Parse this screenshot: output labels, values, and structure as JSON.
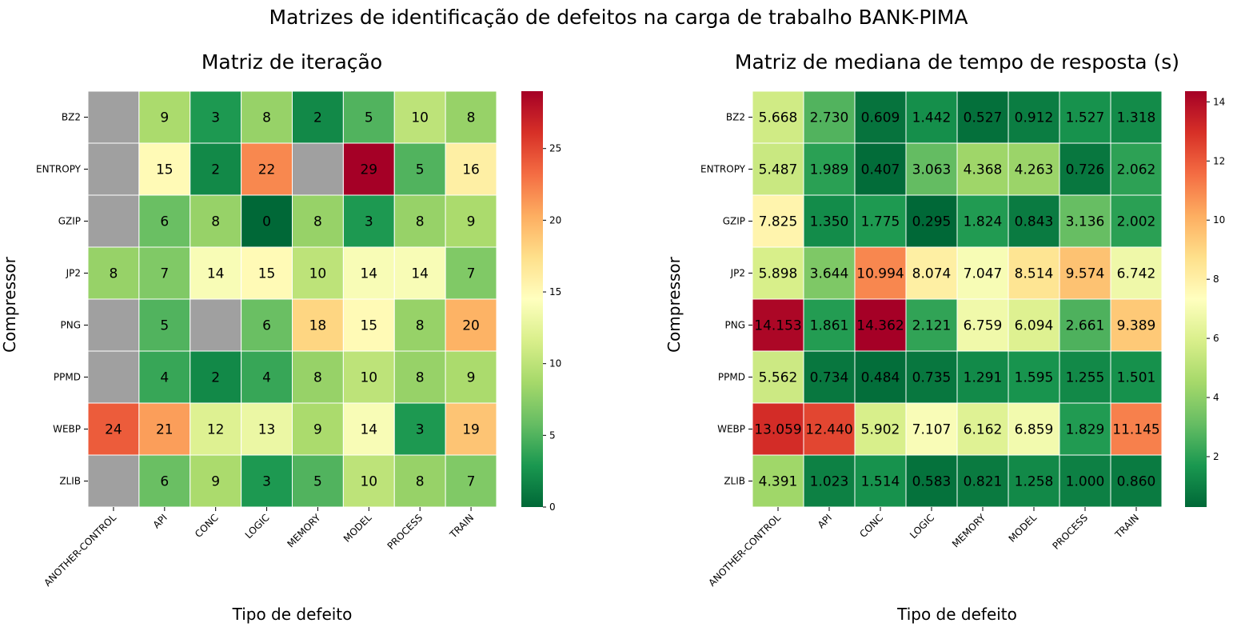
{
  "suptitle": "Matrizes de identificação de defeitos na carga de trabalho BANK-PIMA",
  "chart_data": [
    {
      "type": "heatmap",
      "title": "Matriz de iteração",
      "xlabel": "Tipo de defeito",
      "ylabel": "Compressor",
      "x_categories": [
        "ANOTHER-CONTROL",
        "API",
        "CONC",
        "LOGIC",
        "MEMORY",
        "MODEL",
        "PROCESS",
        "TRAIN"
      ],
      "y_categories": [
        "BZ2",
        "ENTROPY",
        "GZIP",
        "JP2",
        "PNG",
        "PPMD",
        "WEBP",
        "ZLIB"
      ],
      "values": [
        [
          null,
          9,
          3,
          8,
          2,
          5,
          10,
          8
        ],
        [
          null,
          15,
          2,
          22,
          null,
          29,
          5,
          16
        ],
        [
          null,
          6,
          8,
          0,
          8,
          3,
          8,
          9
        ],
        [
          8,
          7,
          14,
          15,
          10,
          14,
          14,
          7
        ],
        [
          null,
          5,
          null,
          6,
          18,
          15,
          8,
          20
        ],
        [
          null,
          4,
          2,
          4,
          8,
          10,
          8,
          9
        ],
        [
          24,
          21,
          12,
          13,
          9,
          14,
          3,
          19
        ],
        [
          null,
          6,
          9,
          3,
          5,
          10,
          8,
          7
        ]
      ],
      "value_labels": [
        [
          "",
          "9",
          "3",
          "8",
          "2",
          "5",
          "10",
          "8"
        ],
        [
          "",
          "15",
          "2",
          "22",
          "",
          "29",
          "5",
          "16"
        ],
        [
          "",
          "6",
          "8",
          "0",
          "8",
          "3",
          "8",
          "9"
        ],
        [
          "8",
          "7",
          "14",
          "15",
          "10",
          "14",
          "14",
          "7"
        ],
        [
          "",
          "5",
          "",
          "6",
          "18",
          "15",
          "8",
          "20"
        ],
        [
          "",
          "4",
          "2",
          "4",
          "8",
          "10",
          "8",
          "9"
        ],
        [
          "24",
          "21",
          "12",
          "13",
          "9",
          "14",
          "3",
          "19"
        ],
        [
          "",
          "6",
          "9",
          "3",
          "5",
          "10",
          "8",
          "7"
        ]
      ],
      "colormap": "RdYlGn_r",
      "missing_color": "#a0a0a0",
      "vmin": 0,
      "vmax": 29,
      "colorbar_ticks": [
        0,
        5,
        10,
        15,
        20,
        25
      ],
      "colorbar_tick_labels": [
        "0",
        "5",
        "10",
        "15",
        "20",
        "25"
      ]
    },
    {
      "type": "heatmap",
      "title": "Matriz de mediana de tempo de resposta (s)",
      "xlabel": "Tipo de defeito",
      "ylabel": "Compressor",
      "x_categories": [
        "ANOTHER-CONTROL",
        "API",
        "CONC",
        "LOGIC",
        "MEMORY",
        "MODEL",
        "PROCESS",
        "TRAIN"
      ],
      "y_categories": [
        "BZ2",
        "ENTROPY",
        "GZIP",
        "JP2",
        "PNG",
        "PPMD",
        "WEBP",
        "ZLIB"
      ],
      "values": [
        [
          5.668,
          2.73,
          0.609,
          1.442,
          0.527,
          0.912,
          1.527,
          1.318
        ],
        [
          5.487,
          1.989,
          0.407,
          3.063,
          4.368,
          4.263,
          0.726,
          2.062
        ],
        [
          7.825,
          1.35,
          1.775,
          0.295,
          1.824,
          0.843,
          3.136,
          2.002
        ],
        [
          5.898,
          3.644,
          10.994,
          8.074,
          7.047,
          8.514,
          9.574,
          6.742
        ],
        [
          14.153,
          1.861,
          14.362,
          2.121,
          6.759,
          6.094,
          2.661,
          9.389
        ],
        [
          5.562,
          0.734,
          0.484,
          0.735,
          1.291,
          1.595,
          1.255,
          1.501
        ],
        [
          13.059,
          12.44,
          5.902,
          7.107,
          6.162,
          6.859,
          1.829,
          11.145
        ],
        [
          4.391,
          1.023,
          1.514,
          0.583,
          0.821,
          1.258,
          1.0,
          0.86
        ]
      ],
      "value_labels": [
        [
          "5.668",
          "2.730",
          "0.609",
          "1.442",
          "0.527",
          "0.912",
          "1.527",
          "1.318"
        ],
        [
          "5.487",
          "1.989",
          "0.407",
          "3.063",
          "4.368",
          "4.263",
          "0.726",
          "2.062"
        ],
        [
          "7.825",
          "1.350",
          "1.775",
          "0.295",
          "1.824",
          "0.843",
          "3.136",
          "2.002"
        ],
        [
          "5.898",
          "3.644",
          "10.994",
          "8.074",
          "7.047",
          "8.514",
          "9.574",
          "6.742"
        ],
        [
          "14.153",
          "1.861",
          "14.362",
          "2.121",
          "6.759",
          "6.094",
          "2.661",
          "9.389"
        ],
        [
          "5.562",
          "0.734",
          "0.484",
          "0.735",
          "1.291",
          "1.595",
          "1.255",
          "1.501"
        ],
        [
          "13.059",
          "12.440",
          "5.902",
          "7.107",
          "6.162",
          "6.859",
          "1.829",
          "11.145"
        ],
        [
          "4.391",
          "1.023",
          "1.514",
          "0.583",
          "0.821",
          "1.258",
          "1.000",
          "0.860"
        ]
      ],
      "colormap": "RdYlGn_r",
      "vmin": 0.295,
      "vmax": 14.362,
      "colorbar_ticks": [
        2,
        4,
        6,
        8,
        10,
        12,
        14
      ],
      "colorbar_tick_labels": [
        "2",
        "4",
        "6",
        "8",
        "10",
        "12",
        "14"
      ]
    }
  ]
}
